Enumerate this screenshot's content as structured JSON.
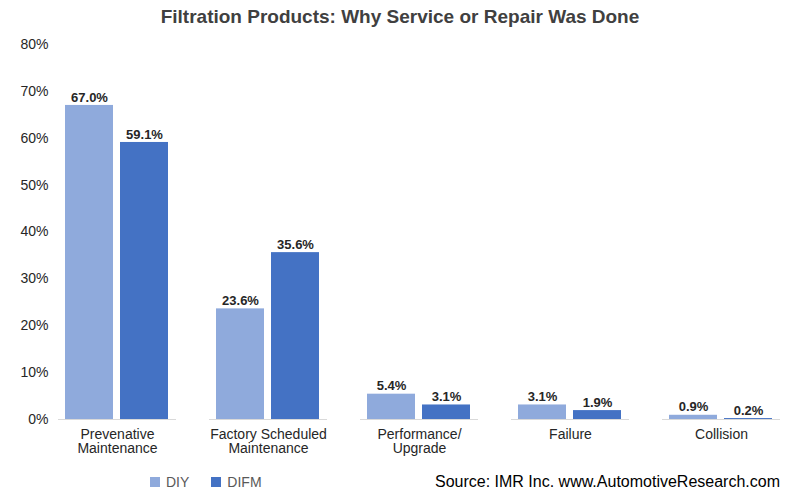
{
  "chart_data": {
    "type": "bar",
    "title": "Filtration Products: Why Service or Repair Was Done",
    "caption": "Source: IMR Inc. www.AutomotiveResearch.com",
    "categories": [
      "Prevenative\nMaintenance",
      "Factory Scheduled\nMaintenance",
      "Performance/\nUpgrade",
      "Failure",
      "Collision"
    ],
    "series": [
      {
        "name": "DIY",
        "color": "#8faadc",
        "values": [
          67.0,
          23.6,
          5.4,
          3.1,
          0.9
        ],
        "value_labels": [
          "67.0%",
          "23.6%",
          "5.4%",
          "3.1%",
          "0.9%"
        ]
      },
      {
        "name": "DIFM",
        "color": "#4472c4",
        "values": [
          59.1,
          35.6,
          3.1,
          1.9,
          0.2
        ],
        "value_labels": [
          "59.1%",
          "35.6%",
          "3.1%",
          "1.9%",
          "0.2%"
        ]
      }
    ],
    "ylim": [
      0,
      80
    ],
    "yticks": [
      {
        "value": 0,
        "label": "0%"
      },
      {
        "value": 10,
        "label": "10%"
      },
      {
        "value": 20,
        "label": "20%"
      },
      {
        "value": 30,
        "label": "30%"
      },
      {
        "value": 40,
        "label": "40%"
      },
      {
        "value": 50,
        "label": "50%"
      },
      {
        "value": 60,
        "label": "60%"
      },
      {
        "value": 70,
        "label": "70%"
      },
      {
        "value": 80,
        "label": "80%"
      }
    ],
    "grid": false,
    "legend": "bottom",
    "data_labels": true
  }
}
